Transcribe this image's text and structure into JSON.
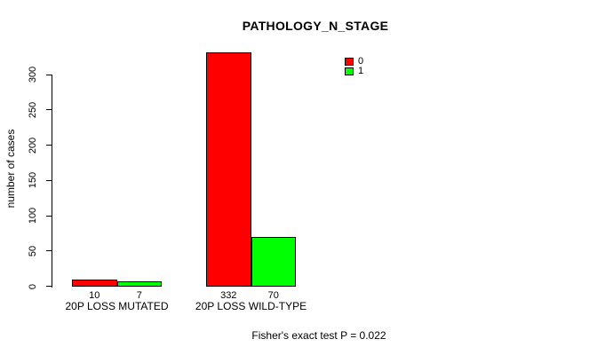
{
  "chart_data": {
    "type": "bar",
    "title": "PATHOLOGY_N_STAGE",
    "ylabel": "number of cases",
    "xlabel": "",
    "categories": [
      "20P LOSS MUTATED",
      "20P LOSS WILD-TYPE"
    ],
    "series": [
      {
        "name": "0",
        "color": "#ff0000",
        "values": [
          10,
          332
        ]
      },
      {
        "name": "1",
        "color": "#00ff00",
        "values": [
          7,
          70
        ]
      }
    ],
    "yticks": [
      0,
      50,
      100,
      150,
      200,
      250,
      300
    ],
    "ylim": [
      0,
      340
    ],
    "grid": false,
    "legend_position": "top-right",
    "bar_border_color": "#000000",
    "annotation": "Fisher's exact test P = 0.022"
  },
  "colors": {
    "background": "#ffffff",
    "text": "#000000",
    "axis": "#000000"
  }
}
